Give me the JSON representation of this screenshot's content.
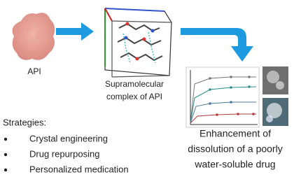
{
  "api_label": "API",
  "complex_label": [
    "Supramolecular",
    "complex of API"
  ],
  "strategies": {
    "title": "Strategies:",
    "items": [
      "Crystal engineering",
      "Drug repurposing",
      "Personalized medication"
    ]
  },
  "result_label": [
    "Enhancement of",
    "dissolution of a poorly",
    "water-soluble drug"
  ]
}
